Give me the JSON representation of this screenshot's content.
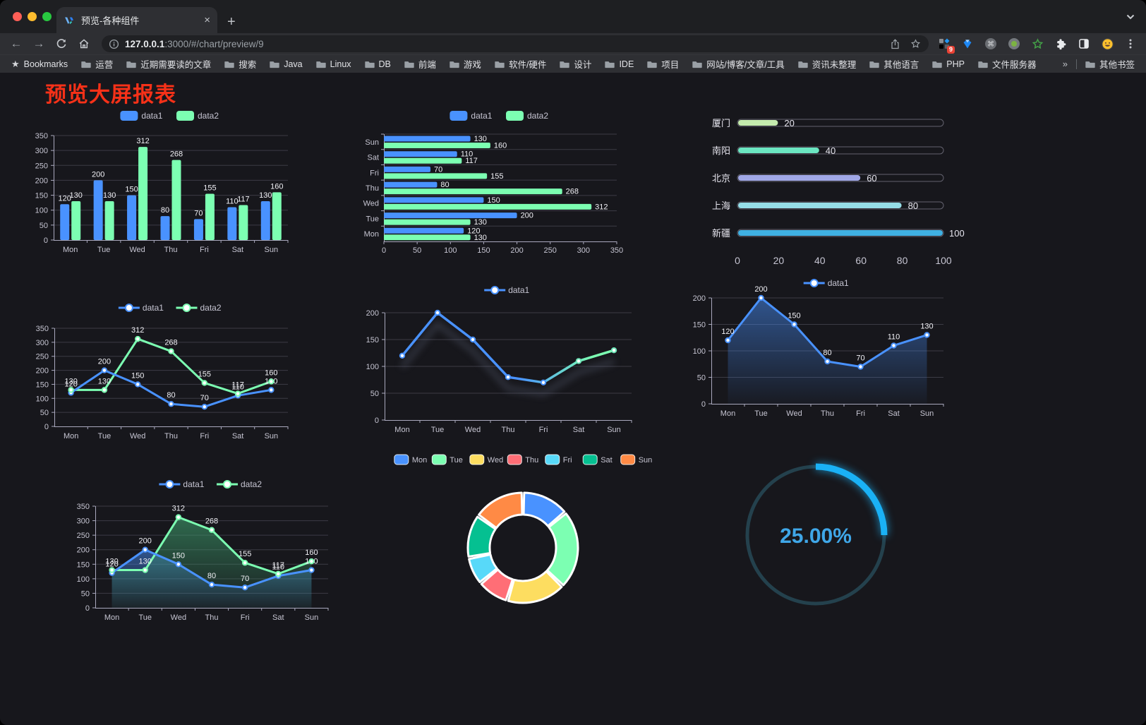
{
  "browser": {
    "tab_title": "预览-各种组件",
    "close_glyph": "×",
    "newtab_glyph": "+",
    "url": {
      "host": "127.0.0.1",
      "rest": ":3000/#/chart/preview/9"
    },
    "extensions_badge": "9",
    "bookmarks": {
      "root_label": "Bookmarks",
      "folders": [
        "运营",
        "近期需要读的文章",
        "搜索",
        "Java",
        "Linux",
        "DB",
        "前端",
        "游戏",
        "软件/硬件",
        "设计",
        "IDE",
        "项目",
        "网站/博客/文章/工具",
        "资讯未整理",
        "其他语言",
        "PHP",
        "文件服务器"
      ],
      "overflow_chevron": "»",
      "other_label": "其他书签"
    }
  },
  "page": {
    "title": "预览大屏报表"
  },
  "colors": {
    "blue": "#4992ff",
    "green": "#7cffb2",
    "yellow": "#fddd60",
    "red": "#ff6e76",
    "lightblue": "#58d9f9",
    "teal": "#05c091",
    "orange": "#ff8a45",
    "title_red": "#f63118",
    "gauge_blue": "#1ab1f5"
  },
  "chart_data": [
    {
      "id": "grouped-bar",
      "type": "bar",
      "categories": [
        "Mon",
        "Tue",
        "Wed",
        "Thu",
        "Fri",
        "Sat",
        "Sun"
      ],
      "series": [
        {
          "name": "data1",
          "color": "#4992ff",
          "values": [
            120,
            200,
            150,
            80,
            70,
            110,
            130
          ]
        },
        {
          "name": "data2",
          "color": "#7cffb2",
          "values": [
            130,
            130,
            312,
            268,
            155,
            117,
            160
          ]
        }
      ],
      "ylim": [
        0,
        350
      ],
      "ystep": 50,
      "legend_position": "top",
      "grid": true
    },
    {
      "id": "bar-horizontal",
      "type": "bar-horizontal",
      "categories": [
        "Mon",
        "Tue",
        "Wed",
        "Thu",
        "Fri",
        "Sat",
        "Sun"
      ],
      "category_display_order_top_to_bottom": [
        "Sun",
        "Sat",
        "Fri",
        "Thu",
        "Wed",
        "Tue",
        "Mon"
      ],
      "series": [
        {
          "name": "data1",
          "color": "#4992ff",
          "values": [
            120,
            200,
            150,
            80,
            70,
            110,
            130
          ]
        },
        {
          "name": "data2",
          "color": "#7cffb2",
          "values": [
            130,
            130,
            312,
            268,
            155,
            117,
            160
          ]
        }
      ],
      "xlim": [
        0,
        350
      ],
      "xstep": 50,
      "legend_position": "top",
      "grid": true
    },
    {
      "id": "progress",
      "type": "progress-bars",
      "rows": [
        {
          "label": "厦门",
          "value": 20,
          "color": "#c4ebad"
        },
        {
          "label": "南阳",
          "value": 40,
          "color": "#6be6c1"
        },
        {
          "label": "北京",
          "value": 60,
          "color": "#a0a7e6"
        },
        {
          "label": "上海",
          "value": 80,
          "color": "#96dee8"
        },
        {
          "label": "新疆",
          "value": 100,
          "color": "#3fb1e3"
        }
      ],
      "xlim": [
        0,
        100
      ],
      "xticks": [
        0,
        20,
        40,
        60,
        80,
        100
      ]
    },
    {
      "id": "line-two",
      "type": "line",
      "categories": [
        "Mon",
        "Tue",
        "Wed",
        "Thu",
        "Fri",
        "Sat",
        "Sun"
      ],
      "series": [
        {
          "name": "data1",
          "color": "#4992ff",
          "values": [
            120,
            200,
            150,
            80,
            70,
            110,
            130
          ]
        },
        {
          "name": "data2",
          "color": "#7cffb2",
          "values": [
            130,
            130,
            312,
            268,
            155,
            117,
            160
          ]
        }
      ],
      "ylim": [
        0,
        350
      ],
      "ystep": 50,
      "point_labels": true,
      "grid": true
    },
    {
      "id": "line-gradient",
      "type": "line-gradient",
      "categories": [
        "Mon",
        "Tue",
        "Wed",
        "Thu",
        "Fri",
        "Sat",
        "Sun"
      ],
      "series": [
        {
          "name": "data1",
          "gradient": [
            "#4992ff",
            "#7cffb2"
          ],
          "values": [
            120,
            200,
            150,
            80,
            70,
            110,
            130
          ]
        }
      ],
      "ylim": [
        0,
        200
      ],
      "ystep": 50,
      "point_labels": false,
      "grid": true
    },
    {
      "id": "line-area",
      "type": "line-area",
      "categories": [
        "Mon",
        "Tue",
        "Wed",
        "Thu",
        "Fri",
        "Sat",
        "Sun"
      ],
      "series": [
        {
          "name": "data1",
          "color": "#4992ff",
          "values": [
            120,
            200,
            150,
            80,
            70,
            110,
            130
          ]
        }
      ],
      "ylim": [
        0,
        200
      ],
      "ystep": 50,
      "point_labels": true,
      "grid": true
    },
    {
      "id": "line-area-two",
      "type": "line-area",
      "categories": [
        "Mon",
        "Tue",
        "Wed",
        "Thu",
        "Fri",
        "Sat",
        "Sun"
      ],
      "series": [
        {
          "name": "data1",
          "color": "#4992ff",
          "values": [
            120,
            200,
            150,
            80,
            70,
            110,
            130
          ]
        },
        {
          "name": "data2",
          "color": "#7cffb2",
          "values": [
            130,
            130,
            312,
            268,
            155,
            117,
            160
          ]
        }
      ],
      "ylim": [
        0,
        350
      ],
      "ystep": 50,
      "point_labels": true,
      "grid": true
    },
    {
      "id": "donut",
      "type": "pie",
      "labels": [
        "Mon",
        "Tue",
        "Wed",
        "Thu",
        "Fri",
        "Sat",
        "Sun"
      ],
      "values": [
        120,
        200,
        150,
        80,
        70,
        110,
        130
      ],
      "colors": [
        "#4992ff",
        "#7cffb2",
        "#fddd60",
        "#ff6e76",
        "#58d9f9",
        "#05c091",
        "#ff8a45"
      ],
      "donut": true,
      "legend_position": "top"
    },
    {
      "id": "gauge",
      "type": "gauge",
      "value": 25,
      "max": 100,
      "display": "25.00%",
      "color": "#1ab1f5"
    }
  ]
}
